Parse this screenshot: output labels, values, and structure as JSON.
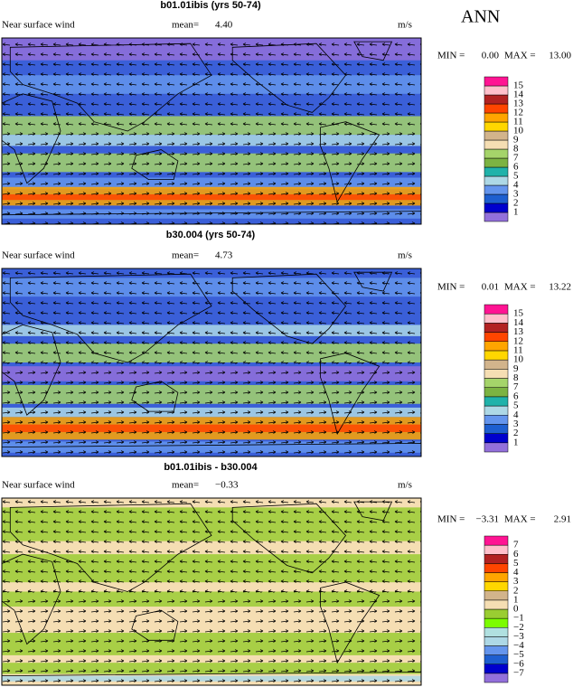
{
  "header": {
    "season": "ANN"
  },
  "panels": [
    {
      "title": "b01.01ibis (yrs 50-74)",
      "variable": "Near surface wind",
      "mean_label": "mean=",
      "mean": "4.40",
      "units": "m/s",
      "min_label": "MIN =",
      "min": "0.00",
      "max_label": "MAX =",
      "max": "13.00",
      "colorbar": {
        "labels": [
          "1",
          "2",
          "3",
          "4",
          "5",
          "6",
          "7",
          "8",
          "9",
          "10",
          "11",
          "12",
          "13",
          "14",
          "15"
        ],
        "colors": [
          "#9370db",
          "#0000cd",
          "#1e5fd0",
          "#6495ed",
          "#add8e6",
          "#20b2aa",
          "#7cb342",
          "#a5d46a",
          "#f5deb3",
          "#d2b48c",
          "#ffd700",
          "#ffa500",
          "#ff4500",
          "#b22222",
          "#ffc0cb",
          "#ff1493"
        ]
      }
    },
    {
      "title": "b30.004 (yrs 50-74)",
      "variable": "Near surface wind",
      "mean_label": "mean=",
      "mean": "4.73",
      "units": "m/s",
      "min_label": "MIN =",
      "min": "0.01",
      "max_label": "MAX =",
      "max": "13.22",
      "colorbar": {
        "labels": [
          "1",
          "2",
          "3",
          "4",
          "5",
          "6",
          "7",
          "8",
          "9",
          "10",
          "11",
          "12",
          "13",
          "14",
          "15"
        ],
        "colors": [
          "#9370db",
          "#0000cd",
          "#1e5fd0",
          "#6495ed",
          "#add8e6",
          "#20b2aa",
          "#7cb342",
          "#a5d46a",
          "#f5deb3",
          "#d2b48c",
          "#ffd700",
          "#ffa500",
          "#ff4500",
          "#b22222",
          "#ffc0cb",
          "#ff1493"
        ]
      }
    },
    {
      "title": "b01.01ibis - b30.004",
      "variable": "Near surface wind",
      "mean_label": "mean=",
      "mean": "−0.33",
      "units": "m/s",
      "min_label": "MIN =",
      "min": "−3.31",
      "max_label": "MAX =",
      "max": "2.91",
      "colorbar": {
        "labels": [
          "−7",
          "−6",
          "−5",
          "−4",
          "−3",
          "−2",
          "−1",
          "0",
          "1",
          "2",
          "3",
          "4",
          "5",
          "6",
          "7"
        ],
        "colors": [
          "#9370db",
          "#0000cd",
          "#1e5fd0",
          "#6495ed",
          "#add8e6",
          "#b0e0e0",
          "#7cfc00",
          "#9acd32",
          "#f5deb3",
          "#d2b48c",
          "#ffd700",
          "#ffa500",
          "#ff4500",
          "#b22222",
          "#ffc0cb",
          "#ff1493"
        ]
      }
    }
  ]
}
